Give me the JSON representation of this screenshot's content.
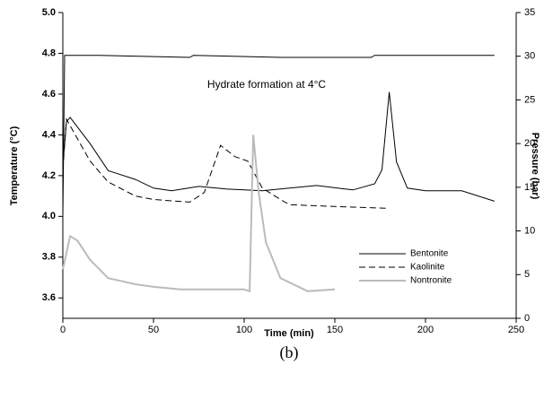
{
  "chart_data": {
    "type": "line",
    "annotation": "Hydrate formation at 4°C",
    "caption": "(b)",
    "xlabel": "Time (min)",
    "ylabel": "Temperature (°C)",
    "y2label": "Pressure (bar)",
    "xlim": [
      0,
      250
    ],
    "xticks": [
      0,
      50,
      100,
      150,
      200,
      250
    ],
    "ylim": [
      3.5,
      5.0
    ],
    "yticks": [
      3.6,
      3.8,
      4.0,
      4.2,
      4.4,
      4.6,
      4.8,
      5.0
    ],
    "y2lim": [
      0,
      35
    ],
    "y2ticks": [
      0,
      5,
      10,
      15,
      20,
      25,
      30,
      35
    ],
    "legend": "lower right",
    "series": [
      {
        "color": "#000000",
        "style": "solid",
        "axis": "y",
        "x": [
          0,
          1,
          2,
          20,
          70,
          72,
          120,
          122,
          170,
          172,
          238
        ],
        "values": [
          4.0,
          4.79,
          4.79,
          4.79,
          4.78,
          4.79,
          4.78,
          4.78,
          4.78,
          4.79,
          4.79
        ]
      },
      {
        "name": "Bentonite",
        "color": "#000000",
        "style": "solid",
        "axis": "y2",
        "x": [
          0,
          2,
          4,
          15,
          25,
          40,
          50,
          60,
          75,
          90,
          110,
          125,
          140,
          160,
          172,
          176,
          180,
          184,
          190,
          200,
          220,
          238
        ],
        "values": [
          17.5,
          22.5,
          23.0,
          20.0,
          16.9,
          15.9,
          14.9,
          14.6,
          15.1,
          14.8,
          14.6,
          14.9,
          15.2,
          14.7,
          15.4,
          17.0,
          25.9,
          17.9,
          14.9,
          14.6,
          14.6,
          13.4
        ]
      },
      {
        "name": "Kaolinite",
        "color": "#000000",
        "style": "dashed",
        "axis": "y2",
        "x": [
          0,
          2,
          15,
          25,
          40,
          50,
          70,
          78,
          87,
          95,
          102,
          110,
          120,
          125,
          150,
          178
        ],
        "values": [
          17.0,
          22.8,
          18.0,
          15.6,
          14.0,
          13.6,
          13.3,
          14.4,
          19.8,
          18.5,
          18.0,
          14.9,
          13.6,
          13.0,
          12.8,
          12.6
        ]
      },
      {
        "name": "Nontronite",
        "color": "#bbbbbb",
        "style": "solid",
        "axis": "y2",
        "x": [
          0,
          4,
          8,
          15,
          25,
          40,
          50,
          65,
          80,
          100,
          103,
          105,
          108,
          112,
          120,
          135,
          150
        ],
        "values": [
          5.6,
          9.4,
          8.9,
          6.7,
          4.6,
          3.9,
          3.6,
          3.3,
          3.3,
          3.3,
          3.1,
          21.0,
          14.4,
          8.7,
          4.6,
          3.1,
          3.3
        ]
      }
    ]
  }
}
